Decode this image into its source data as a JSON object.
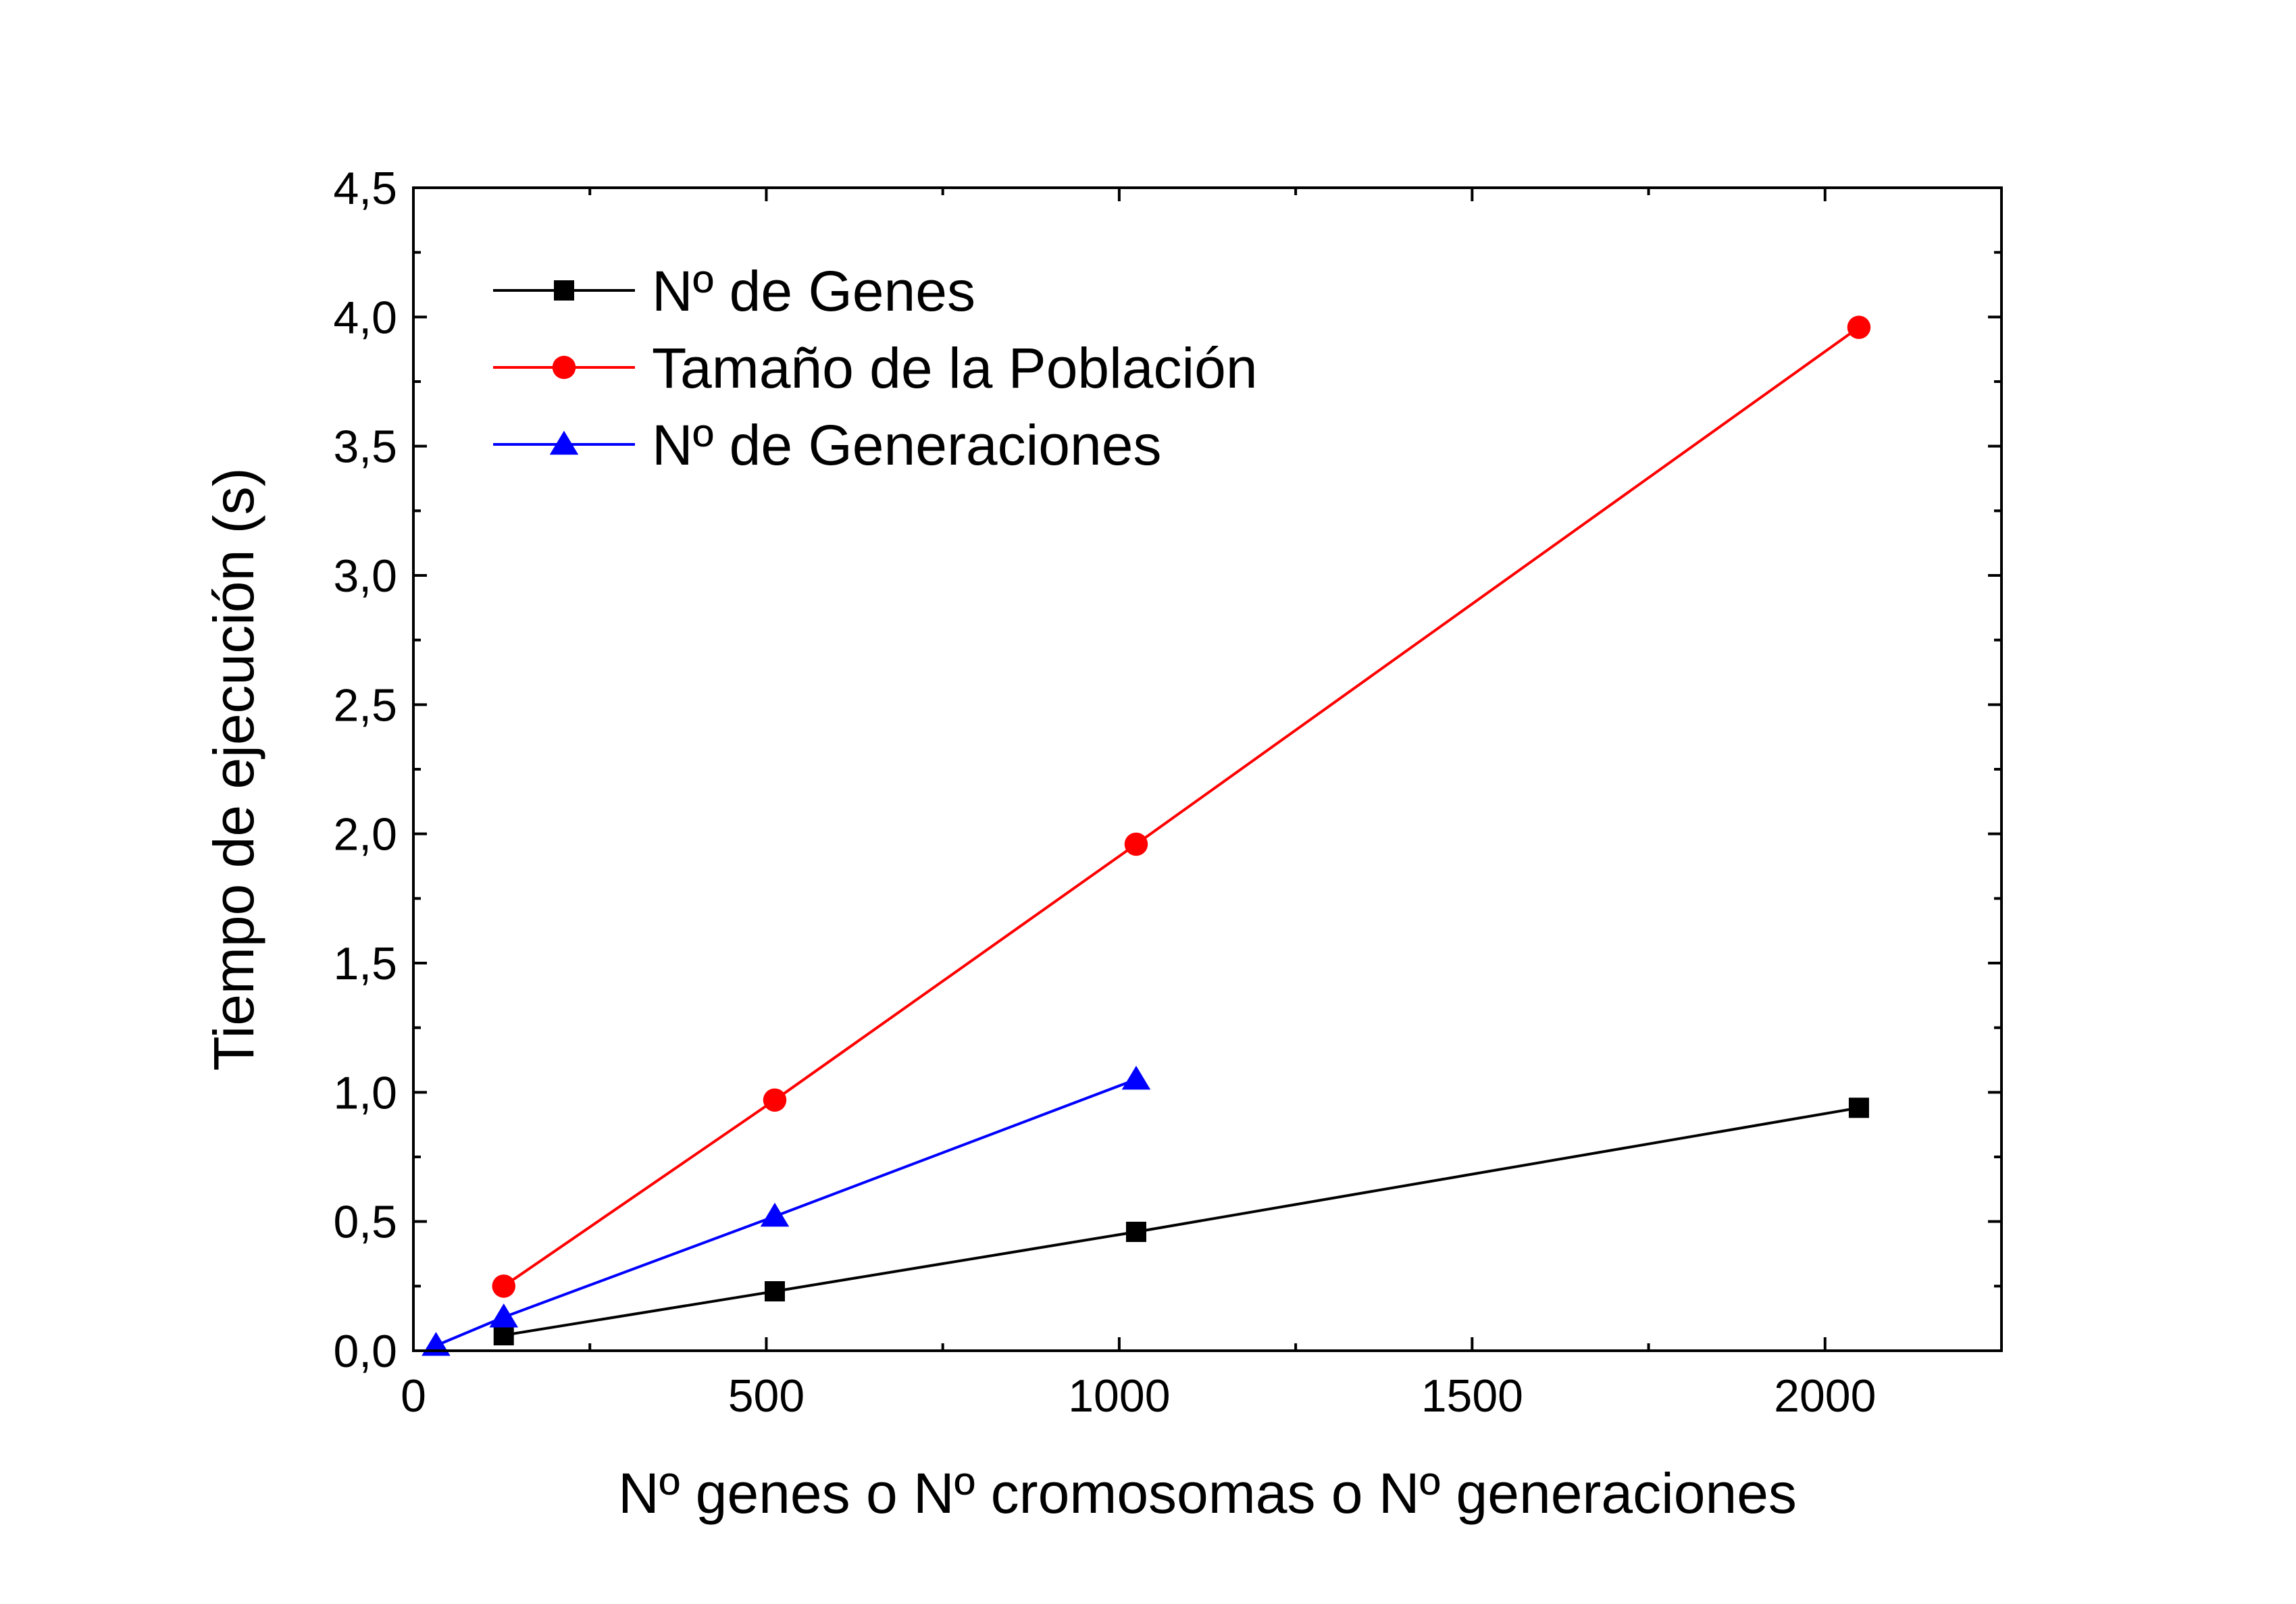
{
  "chart_data": {
    "type": "line",
    "title": "",
    "xlabel": "Nº genes o Nº cromosomas o Nº generaciones",
    "ylabel": "Tiempo de ejecución (s)",
    "xlim": [
      0,
      2250
    ],
    "ylim": [
      0,
      4.5
    ],
    "x_ticks": [
      0,
      500,
      1000,
      1500,
      2000
    ],
    "x_tick_labels": [
      "0",
      "500",
      "1000",
      "1500",
      "2000"
    ],
    "y_ticks": [
      0,
      0.5,
      1.0,
      1.5,
      2.0,
      2.5,
      3.0,
      3.5,
      4.0,
      4.5
    ],
    "y_tick_labels": [
      "0,0",
      "0,5",
      "1,0",
      "1,5",
      "2,0",
      "2,5",
      "3,0",
      "3,5",
      "4,0",
      "4,5"
    ],
    "grid": false,
    "legend_position": "top-left",
    "series": [
      {
        "name": "Nº de Genes",
        "color": "#000000",
        "marker": "square",
        "x": [
          128,
          512,
          1024,
          2048
        ],
        "y": [
          0.06,
          0.23,
          0.46,
          0.94
        ]
      },
      {
        "name": "Tamaño de la Población",
        "color": "#ff0000",
        "marker": "circle",
        "x": [
          128,
          512,
          1024,
          2048
        ],
        "y": [
          0.25,
          0.97,
          1.96,
          3.96
        ]
      },
      {
        "name": "Nº de Generaciones",
        "color": "#0000ff",
        "marker": "triangle",
        "x": [
          32,
          128,
          512,
          1024
        ],
        "y": [
          0.02,
          0.13,
          0.52,
          1.05
        ]
      }
    ]
  }
}
